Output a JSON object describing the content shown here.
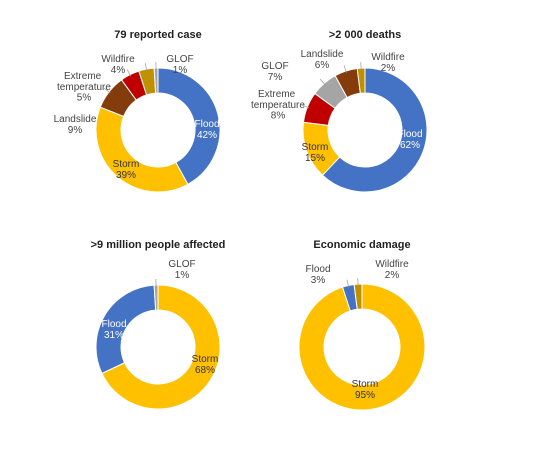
{
  "chart_data": [
    {
      "type": "donut",
      "title": "79 reported case",
      "categories": [
        "Flood",
        "Storm",
        "Landslide",
        "Extreme temperature",
        "Wildfire",
        "GLOF"
      ],
      "values": [
        42,
        39,
        9,
        5,
        4,
        1
      ],
      "value_labels": [
        "42%",
        "39%",
        "9%",
        "5%",
        "4%",
        "1%"
      ],
      "colors": [
        "#4472c4",
        "#ffc000",
        "#843c0c",
        "#c00000",
        "#bf9000",
        "#a5a5a5"
      ]
    },
    {
      "type": "donut",
      "title": ">2 000 deaths",
      "categories": [
        "Flood",
        "Storm",
        "Extreme temperature",
        "GLOF",
        "Landslide",
        "Wildfire"
      ],
      "values": [
        62,
        15,
        8,
        7,
        6,
        2
      ],
      "value_labels": [
        "62%",
        "15%",
        "8%",
        "7%",
        "6%",
        "2%"
      ],
      "colors": [
        "#4472c4",
        "#ffc000",
        "#c00000",
        "#a5a5a5",
        "#843c0c",
        "#bf9000"
      ]
    },
    {
      "type": "donut",
      "title": ">9 million people affected",
      "categories": [
        "Storm",
        "Flood",
        "GLOF"
      ],
      "values": [
        68,
        31,
        1
      ],
      "value_labels": [
        "68%",
        "31%",
        "1%"
      ],
      "colors": [
        "#ffc000",
        "#4472c4",
        "#a5a5a5"
      ]
    },
    {
      "type": "donut",
      "title": "Economic damage",
      "categories": [
        "Storm",
        "Flood",
        "Wildfire"
      ],
      "values": [
        95,
        3,
        2
      ],
      "value_labels": [
        "95%",
        "3%",
        "2%"
      ],
      "colors": [
        "#ffc000",
        "#4472c4",
        "#bf9000"
      ]
    }
  ]
}
